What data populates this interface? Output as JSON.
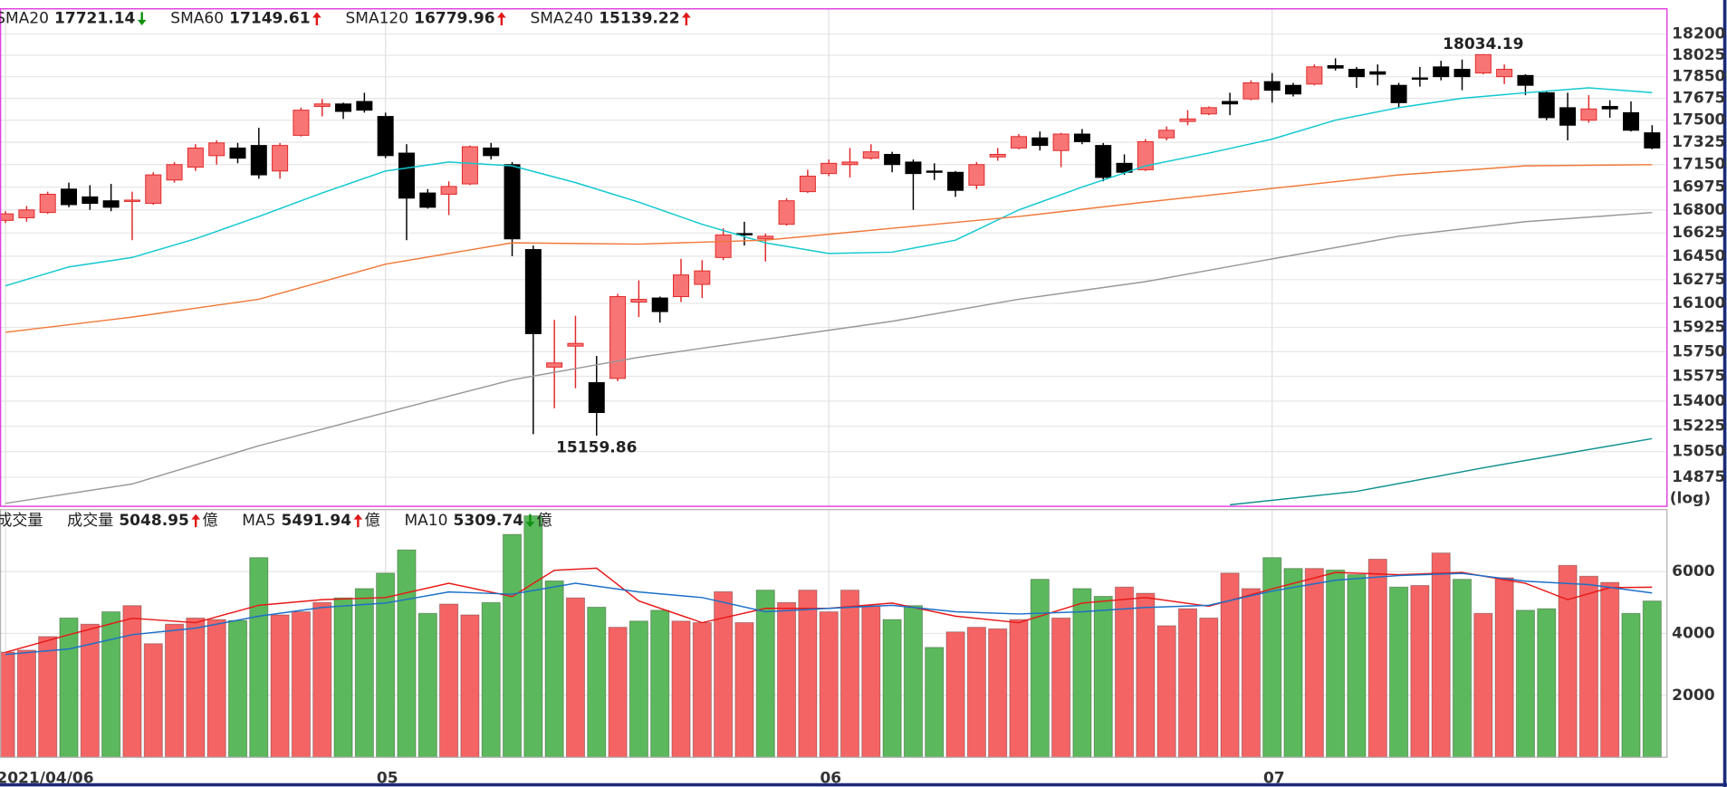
{
  "chart_data": [
    {
      "type": "candlestick",
      "log_y": true,
      "y_scale_label": "(log)",
      "ylim": [
        14680,
        18410
      ],
      "yticks": [
        18200,
        18025,
        17850,
        17675,
        17500,
        17325,
        17150,
        16975,
        16800,
        16625,
        16450,
        16275,
        16100,
        15925,
        15750,
        15575,
        15400,
        15225,
        15050,
        14875
      ],
      "grid": true,
      "up_color": "#f87575",
      "up_edge": "#e02828",
      "down_color": "#000000",
      "open": [
        16720,
        16740,
        16780,
        16960,
        16900,
        16870,
        16870,
        16850,
        17030,
        17130,
        17220,
        17280,
        17300,
        17100,
        17380,
        17610,
        17630,
        17650,
        17530,
        17240,
        16930,
        16920,
        17000,
        17280,
        17150,
        16500,
        15640,
        15790,
        15530,
        15560,
        16110,
        16140,
        16150,
        16240,
        16440,
        16620,
        16580,
        16690,
        16940,
        17080,
        17150,
        17200,
        17230,
        17170,
        17100,
        17090,
        16990,
        17210,
        17280,
        17360,
        17260,
        17390,
        17300,
        17160,
        17110,
        17360,
        17490,
        17550,
        17650,
        17670,
        17810,
        17780,
        17790,
        17940,
        17910,
        17890,
        17780,
        17840,
        17930,
        17910,
        17880,
        17850,
        17860,
        17720,
        17600,
        17500,
        17610,
        17560,
        17400
      ],
      "high": [
        16790,
        16830,
        16940,
        17010,
        16990,
        17000,
        16940,
        17090,
        17170,
        17310,
        17340,
        17320,
        17440,
        17320,
        17600,
        17670,
        17640,
        17720,
        17560,
        17310,
        16960,
        17020,
        17300,
        17320,
        17170,
        16530,
        15980,
        16010,
        15720,
        16170,
        16270,
        16150,
        16430,
        16420,
        16660,
        16710,
        16620,
        16890,
        17110,
        17190,
        17280,
        17310,
        17250,
        17190,
        17160,
        17100,
        17170,
        17280,
        17390,
        17410,
        17400,
        17430,
        17320,
        17230,
        17350,
        17450,
        17580,
        17610,
        17720,
        17820,
        17880,
        17800,
        17950,
        18000,
        17930,
        17950,
        17800,
        17930,
        17980,
        17990,
        18034.19,
        17950,
        17870,
        17730,
        17720,
        17700,
        17660,
        17650,
        17460
      ],
      "low": [
        16700,
        16710,
        16770,
        16820,
        16800,
        16790,
        16570,
        16840,
        17010,
        17100,
        17150,
        17160,
        17040,
        17040,
        17370,
        17530,
        17510,
        17560,
        17200,
        16570,
        16810,
        16760,
        16990,
        17190,
        16450,
        15170,
        15350,
        15490,
        15159.86,
        15540,
        16000,
        15960,
        16110,
        16140,
        16420,
        16530,
        16410,
        16680,
        16930,
        17060,
        17050,
        17190,
        17090,
        16800,
        17030,
        16900,
        16960,
        17180,
        17270,
        17260,
        17130,
        17310,
        17020,
        17070,
        17100,
        17340,
        17460,
        17540,
        17540,
        17660,
        17640,
        17690,
        17780,
        17900,
        17760,
        17780,
        17600,
        17770,
        17820,
        17740,
        17870,
        17790,
        17700,
        17500,
        17340,
        17480,
        17520,
        17410,
        17270
      ],
      "close": [
        16770,
        16800,
        16920,
        16840,
        16850,
        16820,
        16875,
        17070,
        17150,
        17280,
        17320,
        17200,
        17070,
        17300,
        17580,
        17630,
        17570,
        17580,
        17220,
        16890,
        16820,
        16980,
        17290,
        17220,
        16580,
        15880,
        15670,
        15810,
        15320,
        16150,
        16130,
        16040,
        16310,
        16340,
        16610,
        16610,
        16600,
        16870,
        17060,
        17160,
        17170,
        17250,
        17150,
        17080,
        17090,
        16950,
        17150,
        17230,
        17370,
        17300,
        17390,
        17330,
        17050,
        17090,
        17330,
        17420,
        17510,
        17600,
        17630,
        17800,
        17740,
        17710,
        17930,
        17920,
        17850,
        17870,
        17640,
        17830,
        17850,
        17850,
        18030,
        17910,
        17780,
        17520,
        17460,
        17590,
        17590,
        17420,
        17280
      ],
      "overlays": [
        {
          "name": "SMA20",
          "color": "#10c8d0",
          "trend": "down",
          "x": [
            0,
            3,
            6,
            9,
            12,
            15,
            18,
            21,
            24,
            27,
            30,
            33,
            36,
            39,
            42,
            45,
            48,
            51,
            54,
            57,
            60,
            63,
            66,
            69,
            72,
            75,
            78
          ],
          "values": [
            16230,
            16370,
            16440,
            16580,
            16750,
            16930,
            17100,
            17170,
            17140,
            17010,
            16860,
            16690,
            16550,
            16470,
            16480,
            16570,
            16800,
            16975,
            17140,
            17240,
            17350,
            17500,
            17600,
            17675,
            17720,
            17760,
            17721.14
          ]
        },
        {
          "name": "SMA60",
          "color": "#f07838",
          "trend": "up",
          "x": [
            0,
            6,
            12,
            18,
            24,
            30,
            36,
            42,
            48,
            54,
            60,
            66,
            72,
            78
          ],
          "values": [
            15890,
            16000,
            16130,
            16390,
            16550,
            16540,
            16570,
            16660,
            16750,
            16860,
            16965,
            17070,
            17140,
            17149.61
          ]
        },
        {
          "name": "SMA120",
          "color": "#989898",
          "trend": "up",
          "x": [
            0,
            6,
            12,
            18,
            24,
            30,
            36,
            42,
            48,
            54,
            60,
            66,
            72,
            78
          ],
          "values": [
            14700,
            14830,
            15090,
            15320,
            15550,
            15710,
            15840,
            15970,
            16130,
            16260,
            16430,
            16600,
            16710,
            16779.96
          ]
        },
        {
          "name": "SMA240",
          "color": "#109090",
          "trend": "up",
          "x": [
            58,
            64,
            70,
            78
          ],
          "values": [
            14690,
            14780,
            14940,
            15139.22
          ]
        }
      ]
    },
    {
      "type": "bar",
      "title": "成交量",
      "ylim": [
        0,
        8000
      ],
      "yticks": [
        2000,
        4000,
        6000
      ],
      "grid": true,
      "categories": [
        "2021/04/06",
        null,
        null,
        null,
        null,
        null,
        null,
        null,
        null,
        null,
        null,
        null,
        null,
        null,
        null,
        null,
        null,
        null,
        "05",
        null,
        null,
        null,
        null,
        null,
        null,
        null,
        null,
        null,
        null,
        null,
        null,
        null,
        null,
        null,
        null,
        null,
        null,
        null,
        null,
        "06",
        null,
        null,
        null,
        null,
        null,
        null,
        null,
        null,
        null,
        null,
        null,
        null,
        null,
        null,
        null,
        null,
        null,
        null,
        null,
        null,
        "07",
        null,
        null,
        null,
        null,
        null,
        null,
        null,
        null,
        null,
        null,
        null,
        null,
        null,
        null,
        null,
        null,
        null,
        null
      ],
      "series": [
        {
          "name": "成交量",
          "unit": "億",
          "trend": "up",
          "values": [
            3400,
            3460,
            3900,
            4500,
            4300,
            4700,
            4900,
            3670,
            4300,
            4500,
            4450,
            4420,
            6450,
            4600,
            4700,
            5000,
            5150,
            5450,
            5950,
            6700,
            4650,
            4950,
            4600,
            5000,
            7200,
            7800,
            5700,
            5150,
            4850,
            4200,
            4400,
            4750,
            4400,
            4350,
            5350,
            4350,
            5400,
            5000,
            5400,
            4700,
            5400,
            4900,
            4450,
            4900,
            3550,
            4050,
            4200,
            4150,
            4450,
            5750,
            4500,
            5450,
            5200,
            5500,
            5300,
            4250,
            4800,
            4500,
            5950,
            5450,
            6450,
            6100,
            6100,
            6050,
            5900,
            6400,
            5500,
            5550,
            6600,
            5750,
            4650,
            5800,
            4750,
            4800,
            6200,
            5850,
            5650,
            4650,
            5048.95
          ],
          "colors": [
            "#f46464",
            "#f46464",
            "#f46464",
            "#5cb85c",
            "#f46464",
            "#5cb85c",
            "#f46464",
            "#f46464",
            "#f46464",
            "#f46464",
            "#f46464",
            "#5cb85c",
            "#5cb85c",
            "#f46464",
            "#f46464",
            "#f46464",
            "#5cb85c",
            "#5cb85c",
            "#5cb85c",
            "#5cb85c",
            "#5cb85c",
            "#f46464",
            "#f46464",
            "#5cb85c",
            "#5cb85c",
            "#5cb85c",
            "#5cb85c",
            "#f46464",
            "#5cb85c",
            "#f46464",
            "#5cb85c",
            "#5cb85c",
            "#f46464",
            "#f46464",
            "#f46464",
            "#f46464",
            "#5cb85c",
            "#f46464",
            "#f46464",
            "#f46464",
            "#f46464",
            "#f46464",
            "#5cb85c",
            "#5cb85c",
            "#5cb85c",
            "#f46464",
            "#f46464",
            "#f46464",
            "#f46464",
            "#5cb85c",
            "#f46464",
            "#5cb85c",
            "#5cb85c",
            "#f46464",
            "#f46464",
            "#f46464",
            "#f46464",
            "#f46464",
            "#f46464",
            "#f46464",
            "#5cb85c",
            "#5cb85c",
            "#f46464",
            "#5cb85c",
            "#5cb85c",
            "#f46464",
            "#5cb85c",
            "#f46464",
            "#f46464",
            "#5cb85c",
            "#f46464",
            "#f46464",
            "#5cb85c",
            "#5cb85c",
            "#f46464",
            "#f46464",
            "#f46464",
            "#5cb85c",
            "#5cb85c"
          ]
        }
      ],
      "lines": [
        {
          "name": "MA5",
          "color": "#e81818",
          "unit": "億",
          "trend": "up",
          "x": [
            0,
            3,
            6,
            9,
            12,
            15,
            18,
            21,
            24,
            26,
            28,
            30,
            33,
            36,
            39,
            42,
            45,
            48,
            51,
            54,
            57,
            60,
            63,
            66,
            69,
            72,
            74,
            76,
            78
          ],
          "values": [
            3390,
            3960,
            4490,
            4350,
            4910,
            5090,
            5160,
            5620,
            5190,
            6040,
            6110,
            5050,
            4350,
            4810,
            4810,
            4980,
            4560,
            4350,
            4980,
            5160,
            4880,
            5440,
            5970,
            5900,
            5970,
            5620,
            5090,
            5480,
            5491.94
          ]
        },
        {
          "name": "MA10",
          "color": "#1c70c8",
          "unit": "億",
          "trend": "down",
          "x": [
            0,
            3,
            6,
            9,
            12,
            15,
            18,
            21,
            24,
            27,
            30,
            33,
            36,
            39,
            42,
            45,
            48,
            51,
            54,
            57,
            60,
            63,
            66,
            69,
            72,
            75,
            78
          ],
          "values": [
            3320,
            3500,
            3960,
            4170,
            4560,
            4840,
            4980,
            5340,
            5270,
            5620,
            5340,
            5160,
            4700,
            4810,
            4910,
            4700,
            4630,
            4700,
            4840,
            4910,
            5370,
            5720,
            5870,
            5940,
            5690,
            5580,
            5309.74
          ]
        }
      ]
    }
  ]
}
